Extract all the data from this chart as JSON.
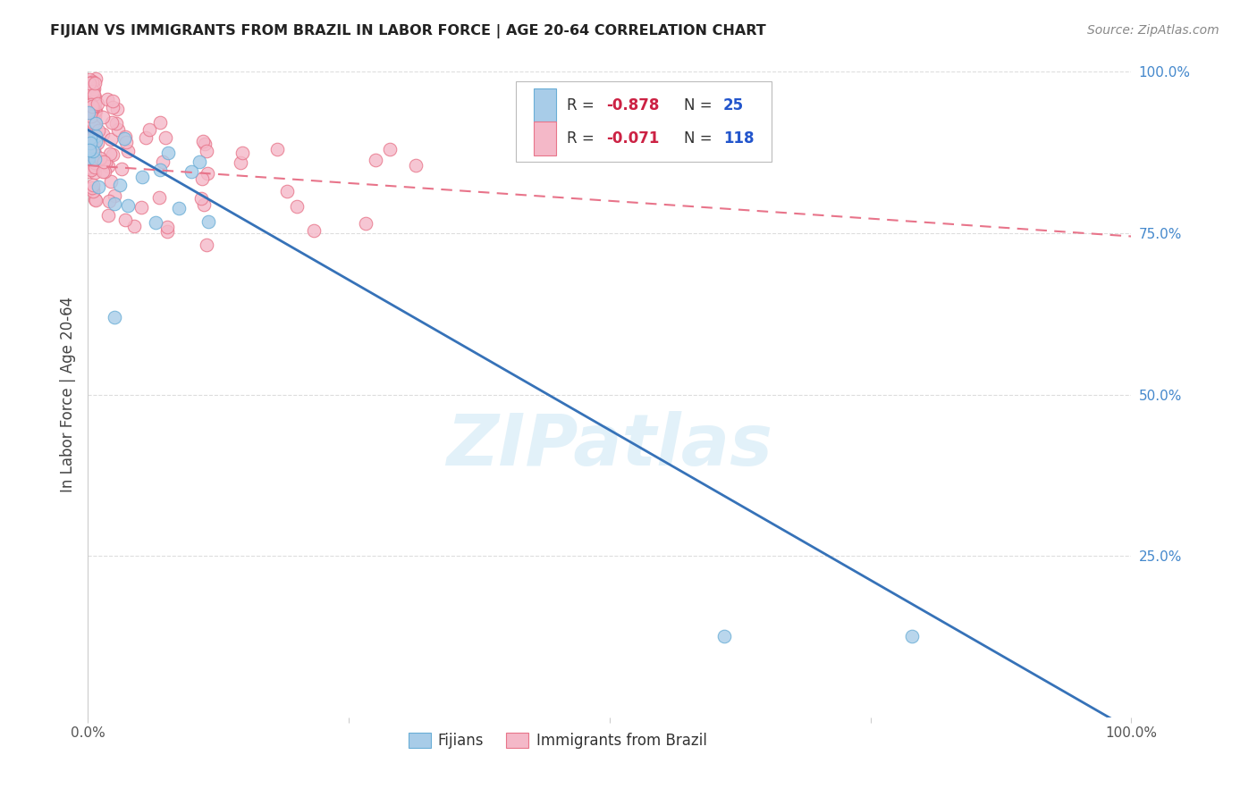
{
  "title": "FIJIAN VS IMMIGRANTS FROM BRAZIL IN LABOR FORCE | AGE 20-64 CORRELATION CHART",
  "source": "Source: ZipAtlas.com",
  "ylabel": "In Labor Force | Age 20-64",
  "xlim": [
    0,
    1.0
  ],
  "ylim": [
    0,
    1.0
  ],
  "fijian_color": "#a8cce8",
  "fijian_edge_color": "#6aaed6",
  "brazil_color": "#f4b8c8",
  "brazil_edge_color": "#e8758a",
  "fijian_line_color": "#3672b8",
  "brazil_line_color": "#e8748a",
  "background_color": "#ffffff",
  "grid_color": "#dddddd",
  "legend_R_color": "#cc2244",
  "legend_N_color": "#2255cc",
  "ytick_color": "#4488cc",
  "xtick_color": "#555555",
  "title_color": "#222222",
  "source_color": "#888888",
  "watermark_color": "#d0e8f5",
  "ylabel_color": "#444444",
  "fijian_R": -0.878,
  "fijian_N": 25,
  "brazil_R": -0.071,
  "brazil_N": 118,
  "fijian_line_x0": 0.0,
  "fijian_line_y0": 0.91,
  "fijian_line_x1": 1.0,
  "fijian_line_y1": -0.02,
  "brazil_line_x0": 0.0,
  "brazil_line_y0": 0.855,
  "brazil_line_x1": 1.0,
  "brazil_line_y1": 0.745
}
